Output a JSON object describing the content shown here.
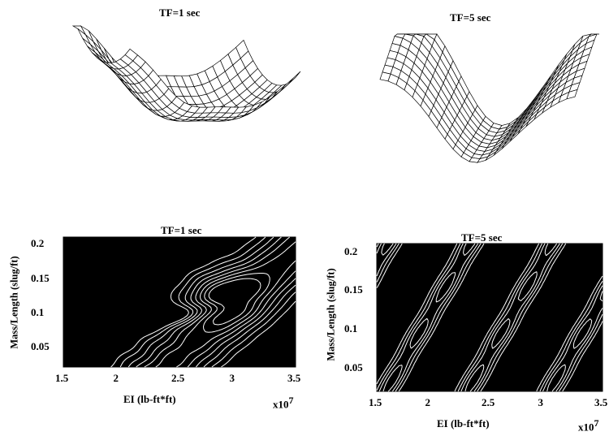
{
  "chart_data": [
    {
      "type": "surface",
      "title": "TF=1 sec",
      "colors": {
        "mesh": "#000000",
        "fill": "#ffffff"
      }
    },
    {
      "type": "surface",
      "title": "TF=5 sec",
      "colors": {
        "mesh": "#000000",
        "fill": "#ffffff"
      }
    },
    {
      "type": "contour",
      "title": "TF=1 sec",
      "xlabel": "EI (lb-ft*ft)",
      "ylabel": "Mass/Length (slug/ft)",
      "x_multiplier": "x10",
      "x_multiplier_exp": "7",
      "xlim": [
        1.5,
        3.5
      ],
      "ylim": [
        0.02,
        0.21
      ],
      "x_ticks": [
        "1.5",
        "2",
        "2.5",
        "3",
        "3.5"
      ],
      "y_ticks": [
        "0.2",
        "0.15",
        "0.1",
        "0.05"
      ],
      "x_tick_values": [
        1.5,
        2,
        2.5,
        3,
        3.5
      ],
      "y_tick_values": [
        0.2,
        0.15,
        0.1,
        0.05
      ],
      "colors": {
        "background": "#000000",
        "lines": "#ffffff"
      }
    },
    {
      "type": "contour",
      "title": "TF=5 sec",
      "xlabel": "EI (lb-ft*ft)",
      "ylabel": "Mass/Length (slug/ft)",
      "x_multiplier": "x10",
      "x_multiplier_exp": "7",
      "xlim": [
        1.5,
        3.5
      ],
      "ylim": [
        0.02,
        0.21
      ],
      "x_ticks": [
        "1.5",
        "2",
        "2.5",
        "3",
        "3.5"
      ],
      "y_ticks": [
        "0.2",
        "0.15",
        "0.1",
        "0.05"
      ],
      "x_tick_values": [
        1.5,
        2,
        2.5,
        3,
        3.5
      ],
      "y_tick_values": [
        0.2,
        0.15,
        0.1,
        0.05
      ],
      "colors": {
        "background": "#000000",
        "lines": "#ffffff"
      }
    }
  ]
}
